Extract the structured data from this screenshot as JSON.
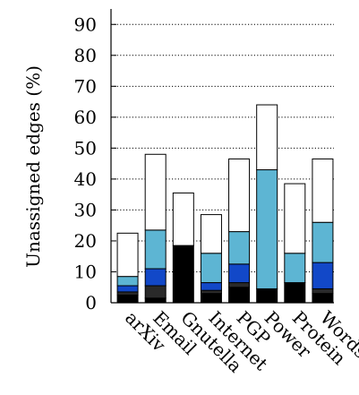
{
  "chart_data": {
    "type": "bar",
    "stacked": true,
    "title": "",
    "xlabel": "",
    "ylabel": "Unassigned edges (%)",
    "ylim": [
      0,
      95
    ],
    "yticks": [
      0,
      10,
      20,
      30,
      40,
      50,
      60,
      70,
      80,
      90
    ],
    "grid": "horizontal dotted",
    "categories": [
      "arXiv",
      "Email",
      "Gnutella",
      "Internet",
      "PGP",
      "Power",
      "Protein",
      "Words"
    ],
    "series": [
      {
        "color": "#000000",
        "values": [
          2.5,
          1.5,
          18.5,
          3,
          5,
          4.5,
          6.5,
          3
        ]
      },
      {
        "color": "#2a2a2a",
        "values": [
          1,
          4,
          0,
          1,
          1.5,
          0,
          0,
          1.5
        ]
      },
      {
        "color": "#1248c8",
        "values": [
          2,
          5.5,
          0,
          2.5,
          6,
          0,
          0,
          8.5
        ]
      },
      {
        "color": "#5db5d3",
        "values": [
          3,
          12.5,
          0,
          9.5,
          10.5,
          38.5,
          9.5,
          13
        ]
      },
      {
        "color": "#ffffff",
        "values": [
          14,
          24.5,
          17,
          12.5,
          23.5,
          21,
          22.5,
          20.5
        ]
      }
    ]
  }
}
